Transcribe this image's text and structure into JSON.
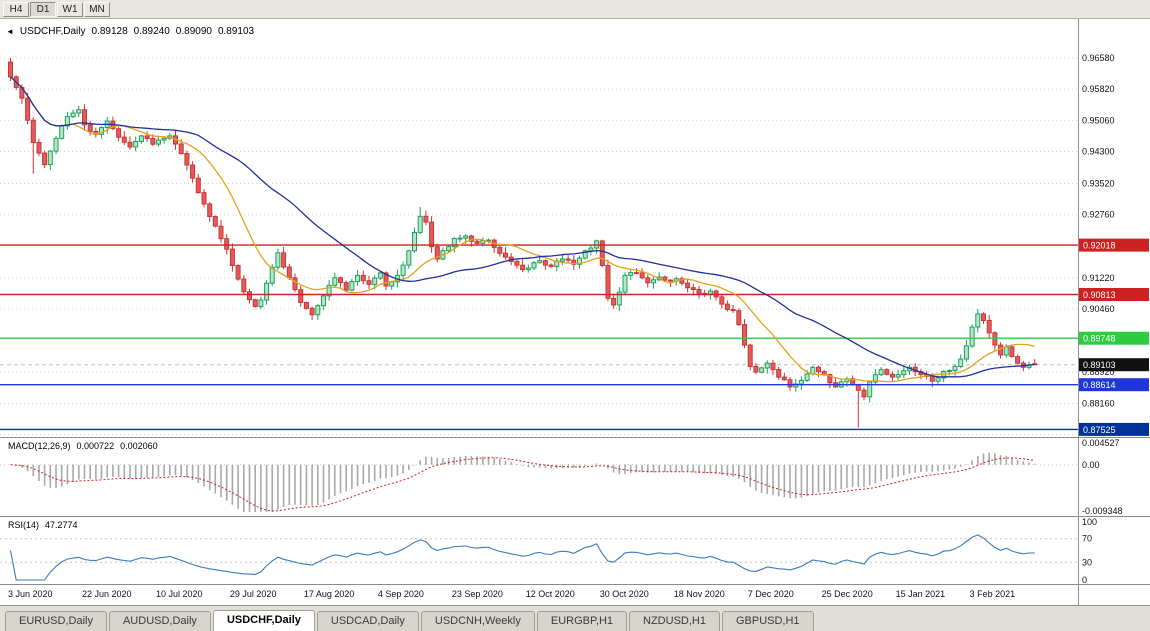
{
  "toolbar": {
    "buttons": [
      {
        "label": "H4",
        "active": false
      },
      {
        "label": "D1",
        "active": true
      },
      {
        "label": "W1",
        "active": false
      },
      {
        "label": "MN",
        "active": false
      }
    ]
  },
  "quote_bar": {
    "collapse_icon": "◄",
    "symbol_label": "USDCHF,Daily",
    "open": "0.89128",
    "high": "0.89240",
    "low": "0.89090",
    "close": "0.89103"
  },
  "tabs": {
    "items": [
      {
        "label": "EURUSD,Daily",
        "active": false
      },
      {
        "label": "AUDUSD,Daily",
        "active": false
      },
      {
        "label": "USDCHF,Daily",
        "active": true
      },
      {
        "label": "USDCAD,Daily",
        "active": false
      },
      {
        "label": "USDCNH,Weekly",
        "active": false
      },
      {
        "label": "EURGBP,H1",
        "active": false
      },
      {
        "label": "NZDUSD,H1",
        "active": false
      },
      {
        "label": "GBPUSD,H1",
        "active": false
      }
    ]
  },
  "chart_data": {
    "type": "candlestick",
    "symbol": "USDCHF",
    "timeframe": "Daily",
    "last_quote": {
      "open": 0.89128,
      "high": 0.8924,
      "low": 0.8909,
      "close": 0.89103
    },
    "current_price": 0.89103,
    "price_axis": {
      "min": 0.8734,
      "max": 0.9753,
      "ticks": [
        0.9658,
        0.9582,
        0.9506,
        0.943,
        0.9352,
        0.9276,
        0.9122,
        0.9046,
        0.8892,
        0.8816,
        0.874
      ]
    },
    "horizontal_levels": [
      {
        "value": 0.92018,
        "color": "#cc2222"
      },
      {
        "value": 0.90813,
        "color": "#cc2222"
      },
      {
        "value": 0.89748,
        "color": "#2ecc40"
      },
      {
        "value": 0.88614,
        "color": "#2136d9"
      },
      {
        "value": 0.87525,
        "color": "#003399"
      }
    ],
    "x_axis": {
      "labels": [
        {
          "index": 0,
          "text": "3 Jun 2020"
        },
        {
          "index": 13,
          "text": "22 Jun 2020"
        },
        {
          "index": 26,
          "text": "10 Jul 2020"
        },
        {
          "index": 39,
          "text": "29 Jul 2020"
        },
        {
          "index": 52,
          "text": "17 Aug 2020"
        },
        {
          "index": 65,
          "text": "4 Sep 2020"
        },
        {
          "index": 78,
          "text": "23 Sep 2020"
        },
        {
          "index": 91,
          "text": "12 Oct 2020"
        },
        {
          "index": 104,
          "text": "30 Oct 2020"
        },
        {
          "index": 117,
          "text": "18 Nov 2020"
        },
        {
          "index": 130,
          "text": "7 Dec 2020"
        },
        {
          "index": 143,
          "text": "25 Dec 2020"
        },
        {
          "index": 156,
          "text": "15 Jan 2021"
        },
        {
          "index": 169,
          "text": "3 Feb 2021"
        }
      ]
    },
    "candles_count": 181,
    "first_open": 0.9648,
    "noise_seed": 11,
    "noise_amp": 0.0011,
    "wick_amp": 0.0013,
    "close_path": [
      [
        0,
        0.9612
      ],
      [
        2,
        0.956
      ],
      [
        4,
        0.9452
      ],
      [
        6,
        0.9398
      ],
      [
        8,
        0.9462
      ],
      [
        10,
        0.9515
      ],
      [
        12,
        0.9532
      ],
      [
        13,
        0.9495
      ],
      [
        15,
        0.9472
      ],
      [
        17,
        0.9504
      ],
      [
        19,
        0.9465
      ],
      [
        21,
        0.9441
      ],
      [
        23,
        0.9468
      ],
      [
        25,
        0.9448
      ],
      [
        26,
        0.9458
      ],
      [
        28,
        0.9468
      ],
      [
        30,
        0.9425
      ],
      [
        32,
        0.9365
      ],
      [
        34,
        0.9302
      ],
      [
        36,
        0.9248
      ],
      [
        38,
        0.9192
      ],
      [
        39,
        0.9152
      ],
      [
        41,
        0.9088
      ],
      [
        43,
        0.9052
      ],
      [
        44,
        0.9068
      ],
      [
        46,
        0.9148
      ],
      [
        47,
        0.9183
      ],
      [
        49,
        0.9122
      ],
      [
        51,
        0.9062
      ],
      [
        53,
        0.9032
      ],
      [
        55,
        0.9078
      ],
      [
        57,
        0.9122
      ],
      [
        59,
        0.9092
      ],
      [
        61,
        0.9128
      ],
      [
        63,
        0.9106
      ],
      [
        65,
        0.9134
      ],
      [
        66,
        0.9102
      ],
      [
        68,
        0.9128
      ],
      [
        70,
        0.9188
      ],
      [
        72,
        0.9272
      ],
      [
        73,
        0.9258
      ],
      [
        74,
        0.9198
      ],
      [
        75,
        0.9168
      ],
      [
        77,
        0.9198
      ],
      [
        78,
        0.9218
      ],
      [
        80,
        0.9224
      ],
      [
        82,
        0.9206
      ],
      [
        84,
        0.9214
      ],
      [
        86,
        0.9182
      ],
      [
        88,
        0.9162
      ],
      [
        90,
        0.9142
      ],
      [
        91,
        0.9146
      ],
      [
        93,
        0.9164
      ],
      [
        95,
        0.915
      ],
      [
        97,
        0.9168
      ],
      [
        99,
        0.9155
      ],
      [
        101,
        0.9188
      ],
      [
        103,
        0.9212
      ],
      [
        104,
        0.9152
      ],
      [
        105,
        0.9072
      ],
      [
        106,
        0.9056
      ],
      [
        108,
        0.9128
      ],
      [
        110,
        0.9134
      ],
      [
        112,
        0.911
      ],
      [
        114,
        0.9124
      ],
      [
        116,
        0.9114
      ],
      [
        117,
        0.912
      ],
      [
        119,
        0.9098
      ],
      [
        121,
        0.9084
      ],
      [
        123,
        0.909
      ],
      [
        125,
        0.9058
      ],
      [
        127,
        0.9042
      ],
      [
        128,
        0.9008
      ],
      [
        129,
        0.8958
      ],
      [
        130,
        0.8906
      ],
      [
        131,
        0.8892
      ],
      [
        133,
        0.8914
      ],
      [
        135,
        0.888
      ],
      [
        137,
        0.8856
      ],
      [
        139,
        0.8872
      ],
      [
        141,
        0.8904
      ],
      [
        143,
        0.8886
      ],
      [
        145,
        0.8856
      ],
      [
        147,
        0.8876
      ],
      [
        149,
        0.8848
      ],
      [
        150,
        0.8832
      ],
      [
        151,
        0.8868
      ],
      [
        153,
        0.8898
      ],
      [
        155,
        0.888
      ],
      [
        156,
        0.8886
      ],
      [
        158,
        0.8904
      ],
      [
        160,
        0.8886
      ],
      [
        162,
        0.887
      ],
      [
        164,
        0.8894
      ],
      [
        166,
        0.8906
      ],
      [
        167,
        0.8924
      ],
      [
        168,
        0.8956
      ],
      [
        169,
        0.9002
      ],
      [
        170,
        0.9034
      ],
      [
        171,
        0.9018
      ],
      [
        172,
        0.8988
      ],
      [
        173,
        0.8958
      ],
      [
        174,
        0.8934
      ],
      [
        175,
        0.8954
      ],
      [
        176,
        0.893
      ],
      [
        177,
        0.8914
      ],
      [
        178,
        0.8904
      ],
      [
        179,
        0.891
      ],
      [
        180,
        0.89103
      ]
    ],
    "wick_overrides": [
      {
        "i": 0,
        "h": 0.9658
      },
      {
        "i": 4,
        "l": 0.9376
      },
      {
        "i": 72,
        "h": 0.9295
      },
      {
        "i": 104,
        "h": 0.9215
      },
      {
        "i": 149,
        "l": 0.8757
      },
      {
        "i": 170,
        "h": 0.9046
      }
    ],
    "moving_averages": [
      {
        "name": "fast-ma",
        "period": 12,
        "color": "#e8a21a"
      },
      {
        "name": "slow-ma",
        "period": 34,
        "color": "#20309a"
      }
    ],
    "colors": {
      "up_stroke": "#1aa05a",
      "up_fill": "#b5e6c6",
      "down_stroke": "#cf3434",
      "down_fill": "#de5c5c",
      "grid": "#d2d2d2",
      "current_badge": "#111111"
    },
    "indicators": {
      "macd": {
        "label": "MACD(12,26,9)",
        "value_main": "0.000722",
        "value_signal": "0.002060",
        "fast": 12,
        "slow": 26,
        "signal": 9,
        "range": [
          -0.009348,
          0.004527
        ],
        "axis_ticks": [
          {
            "value": 0.004527,
            "text": "0.004527"
          },
          {
            "value": 0,
            "text": "0.00"
          },
          {
            "value": -0.009348,
            "text": "-0.009348"
          }
        ],
        "histogram_color": "#a8a8a8",
        "signal_color": "#cc2222"
      },
      "rsi": {
        "label": "RSI(14)",
        "value": "47.2774",
        "period": 14,
        "range": [
          0,
          100
        ],
        "levels": [
          70,
          30
        ],
        "axis_ticks": [
          {
            "value": 100,
            "text": "100"
          },
          {
            "value": 70,
            "text": "70"
          },
          {
            "value": 30,
            "text": "30"
          },
          {
            "value": 0,
            "text": "0"
          }
        ],
        "line_color": "#3b7bbf"
      }
    }
  }
}
